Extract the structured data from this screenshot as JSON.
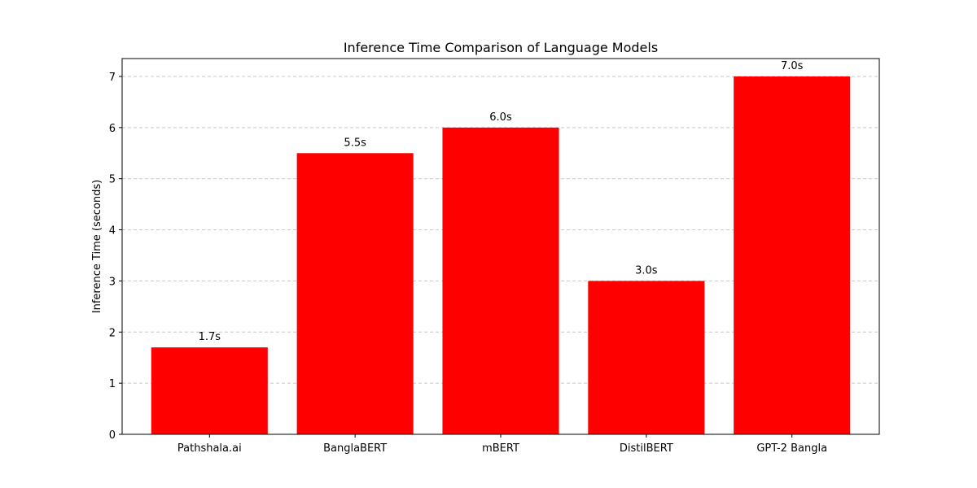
{
  "chart_data": {
    "type": "bar",
    "title": "Inference Time Comparison of Language Models",
    "xlabel": "",
    "ylabel": "Inference Time (seconds)",
    "categories": [
      "Pathshala.ai",
      "BanglaBERT",
      "mBERT",
      "DistilBERT",
      "GPT-2 Bangla"
    ],
    "values": [
      1.7,
      5.5,
      6.0,
      3.0,
      7.0
    ],
    "data_labels": [
      "1.7s",
      "5.5s",
      "6.0s",
      "3.0s",
      "7.0s"
    ],
    "yticks": [
      0,
      1,
      2,
      3,
      4,
      5,
      6,
      7
    ],
    "ylim": [
      0,
      7.35
    ],
    "grid": "y-dashed",
    "legend": "none",
    "colors": {
      "bar": "#ff0000",
      "grid": "#c8c8c8",
      "axis": "#000000",
      "background": "#ffffff"
    }
  }
}
